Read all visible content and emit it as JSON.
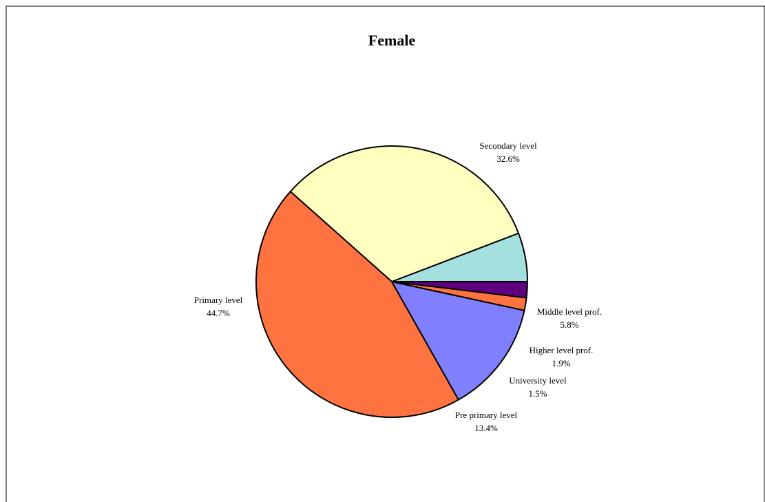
{
  "chart_data": {
    "type": "pie",
    "title": "Female",
    "start_angle_deg": 0,
    "direction": "counter-clockwise",
    "slices": [
      {
        "label": "Middle level prof.",
        "value": 5.8,
        "percent_text": "5.8%",
        "color": "#A5E0E0"
      },
      {
        "label": "Secondary level",
        "value": 32.6,
        "percent_text": "32.6%",
        "color": "#FFFFC0"
      },
      {
        "label": "Primary level",
        "value": 44.7,
        "percent_text": "44.7%",
        "color": "#FF7340"
      },
      {
        "label": "Pre primary level",
        "value": 13.4,
        "percent_text": "13.4%",
        "color": "#8080FF"
      },
      {
        "label": "University level",
        "value": 1.5,
        "percent_text": "1.5%",
        "color": "#FF7340"
      },
      {
        "label": "Higher level prof.",
        "value": 1.9,
        "percent_text": "1.9%",
        "color": "#600080"
      }
    ],
    "legend": "none",
    "stroke_color": "#000000"
  }
}
